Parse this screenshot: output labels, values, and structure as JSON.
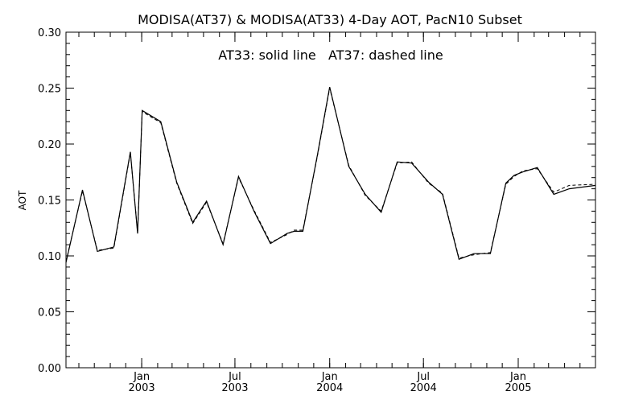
{
  "chart_data": {
    "type": "line",
    "title": "MODISA(AT37) & MODISA(AT33) 4-Day AOT, PacN10 Subset",
    "annotation": "AT33: solid line   AT37: dashed line",
    "xlabel": "",
    "ylabel": "AOT",
    "ylim": [
      0.0,
      0.3
    ],
    "xlim": [
      "2002-08-07",
      "2005-05-31"
    ],
    "yticks": [
      "0.00",
      "0.05",
      "0.10",
      "0.15",
      "0.20",
      "0.25",
      "0.30"
    ],
    "xticks": [
      {
        "date": "2003-01-01",
        "month": "Jan",
        "year": "2003"
      },
      {
        "date": "2003-07-01",
        "month": "Jul",
        "year": "2003"
      },
      {
        "date": "2004-01-01",
        "month": "Jan",
        "year": "2004"
      },
      {
        "date": "2004-07-01",
        "month": "Jul",
        "year": "2004"
      },
      {
        "date": "2005-01-01",
        "month": "Jan",
        "year": "2005"
      }
    ],
    "grid": false,
    "series": [
      {
        "name": "AT33",
        "style": "solid",
        "x": [
          "2002-08-07",
          "2002-09-08",
          "2002-10-07",
          "2002-11-08",
          "2002-12-10",
          "2002-12-24",
          "2003-01-02",
          "2003-02-07",
          "2003-03-10",
          "2003-04-10",
          "2003-05-07",
          "2003-06-08",
          "2003-07-08",
          "2003-08-07",
          "2003-09-08",
          "2003-10-10",
          "2003-10-24",
          "2003-11-10",
          "2003-12-08",
          "2004-01-01",
          "2004-02-07",
          "2004-03-10",
          "2004-04-10",
          "2004-05-11",
          "2004-06-08",
          "2004-07-11",
          "2004-08-07",
          "2004-09-08",
          "2004-10-07",
          "2004-11-08",
          "2004-12-08",
          "2004-12-24",
          "2005-01-10",
          "2005-02-07",
          "2005-03-11",
          "2005-04-10",
          "2005-05-31"
        ],
        "y": [
          0.094,
          0.159,
          0.104,
          0.108,
          0.193,
          0.12,
          0.23,
          0.22,
          0.166,
          0.13,
          0.149,
          0.11,
          0.171,
          0.14,
          0.111,
          0.12,
          0.122,
          0.122,
          0.19,
          0.251,
          0.18,
          0.155,
          0.139,
          0.184,
          0.183,
          0.166,
          0.155,
          0.097,
          0.102,
          0.102,
          0.165,
          0.172,
          0.175,
          0.179,
          0.155,
          0.16,
          0.163
        ]
      },
      {
        "name": "AT37",
        "style": "dashed",
        "x": [
          "2002-08-07",
          "2002-09-08",
          "2002-10-07",
          "2002-11-08",
          "2002-12-10",
          "2002-12-24",
          "2003-01-02",
          "2003-02-07",
          "2003-03-10",
          "2003-04-10",
          "2003-05-07",
          "2003-06-08",
          "2003-07-08",
          "2003-08-07",
          "2003-09-08",
          "2003-10-10",
          "2003-10-24",
          "2003-11-10",
          "2003-12-08",
          "2004-01-01",
          "2004-02-07",
          "2004-03-10",
          "2004-04-10",
          "2004-05-11",
          "2004-06-08",
          "2004-07-11",
          "2004-08-07",
          "2004-09-08",
          "2004-10-07",
          "2004-11-08",
          "2004-12-08",
          "2004-12-24",
          "2005-01-10",
          "2005-02-07",
          "2005-03-11",
          "2005-04-10",
          "2005-05-31"
        ],
        "y": [
          0.095,
          0.158,
          0.105,
          0.107,
          0.192,
          0.121,
          0.229,
          0.219,
          0.165,
          0.129,
          0.148,
          0.111,
          0.17,
          0.141,
          0.112,
          0.119,
          0.123,
          0.123,
          0.189,
          0.25,
          0.181,
          0.154,
          0.14,
          0.183,
          0.184,
          0.165,
          0.156,
          0.098,
          0.101,
          0.103,
          0.164,
          0.171,
          0.176,
          0.178,
          0.157,
          0.163,
          0.164
        ]
      }
    ]
  }
}
